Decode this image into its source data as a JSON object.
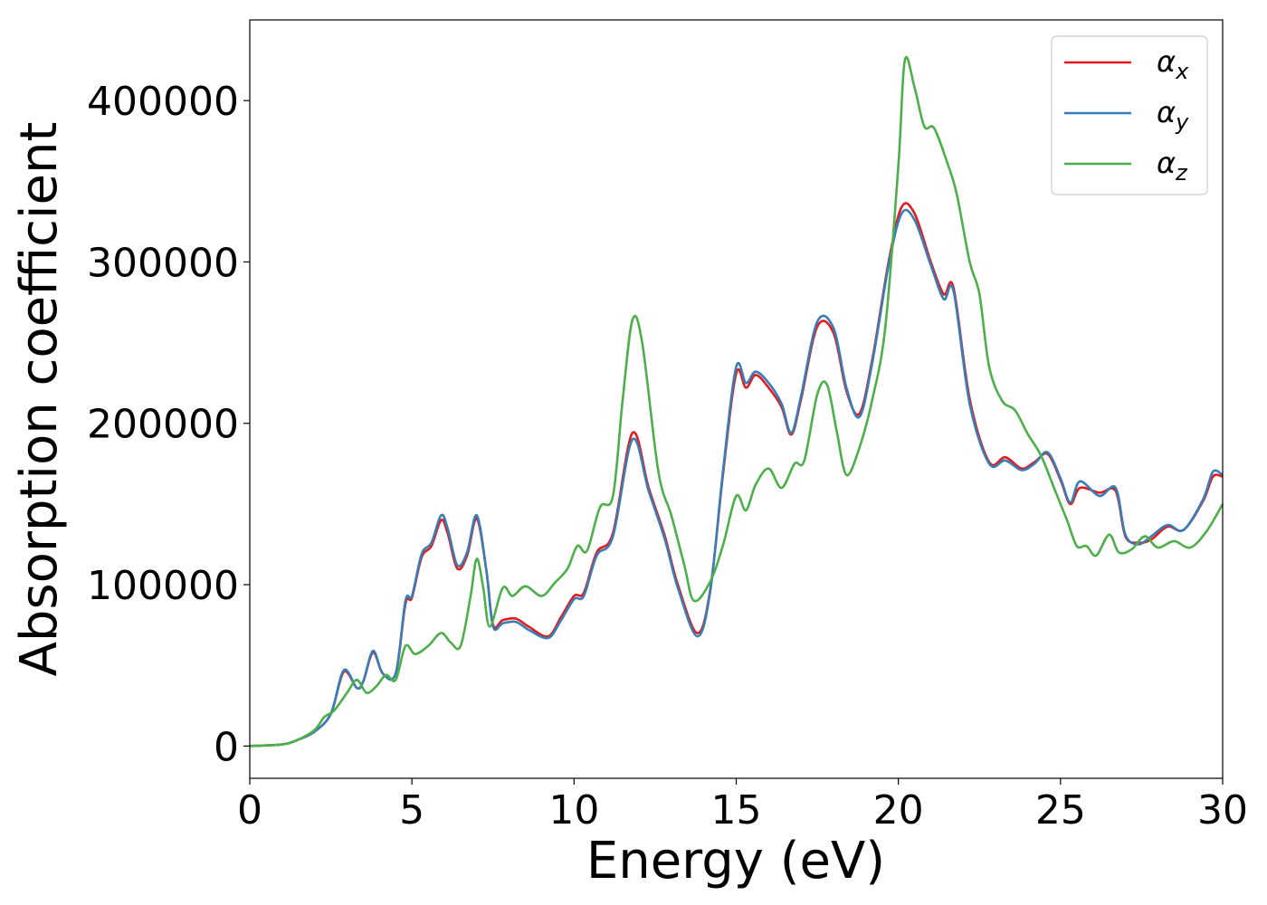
{
  "chart_data": {
    "type": "line",
    "xlabel": "Energy (eV)",
    "ylabel": "Absorption coefficient",
    "xlim": [
      0,
      30
    ],
    "ylim": [
      -20000,
      450000
    ],
    "xticks": [
      0,
      5,
      10,
      15,
      20,
      25,
      30
    ],
    "yticks": [
      0,
      100000,
      200000,
      300000,
      400000
    ],
    "grid": false,
    "legend_position": "top-right",
    "series": [
      {
        "name": "α_x",
        "symbol": "α",
        "subscript": "x",
        "color": "#e41a1c",
        "points": [
          [
            0,
            0
          ],
          [
            1,
            1000
          ],
          [
            1.5,
            4000
          ],
          [
            2,
            9000
          ],
          [
            2.5,
            20000
          ],
          [
            2.9,
            46000
          ],
          [
            3.3,
            36000
          ],
          [
            3.5,
            40000
          ],
          [
            3.8,
            58000
          ],
          [
            4.1,
            45000
          ],
          [
            4.5,
            45000
          ],
          [
            4.8,
            88000
          ],
          [
            5,
            92000
          ],
          [
            5.3,
            117000
          ],
          [
            5.6,
            124000
          ],
          [
            5.9,
            140000
          ],
          [
            6.1,
            132000
          ],
          [
            6.4,
            110000
          ],
          [
            6.7,
            118000
          ],
          [
            7,
            141000
          ],
          [
            7.3,
            108000
          ],
          [
            7.5,
            75000
          ],
          [
            7.8,
            78000
          ],
          [
            8.2,
            79000
          ],
          [
            8.6,
            74000
          ],
          [
            9.2,
            68000
          ],
          [
            9.6,
            80000
          ],
          [
            10,
            93000
          ],
          [
            10.3,
            95000
          ],
          [
            10.7,
            120000
          ],
          [
            11.2,
            132000
          ],
          [
            11.8,
            194000
          ],
          [
            12.3,
            160000
          ],
          [
            12.8,
            130000
          ],
          [
            13.2,
            100000
          ],
          [
            13.8,
            70000
          ],
          [
            14.2,
            97000
          ],
          [
            14.6,
            170000
          ],
          [
            15,
            231000
          ],
          [
            15.3,
            222000
          ],
          [
            15.6,
            230000
          ],
          [
            16,
            222000
          ],
          [
            16.4,
            210000
          ],
          [
            16.7,
            193000
          ],
          [
            17,
            215000
          ],
          [
            17.5,
            260000
          ],
          [
            18,
            256000
          ],
          [
            18.4,
            220000
          ],
          [
            18.8,
            206000
          ],
          [
            19.2,
            240000
          ],
          [
            19.7,
            300000
          ],
          [
            20.1,
            334000
          ],
          [
            20.5,
            330000
          ],
          [
            21,
            300000
          ],
          [
            21.4,
            280000
          ],
          [
            21.7,
            284000
          ],
          [
            22.2,
            215000
          ],
          [
            22.8,
            176000
          ],
          [
            23.3,
            179000
          ],
          [
            23.8,
            172000
          ],
          [
            24.2,
            176000
          ],
          [
            24.6,
            181000
          ],
          [
            25,
            165000
          ],
          [
            25.3,
            150000
          ],
          [
            25.6,
            160000
          ],
          [
            26.2,
            157000
          ],
          [
            26.7,
            158000
          ],
          [
            27,
            130000
          ],
          [
            27.4,
            126000
          ],
          [
            27.8,
            128000
          ],
          [
            28.3,
            136000
          ],
          [
            28.8,
            134000
          ],
          [
            29.4,
            152000
          ],
          [
            29.7,
            167000
          ],
          [
            30,
            167000
          ]
        ]
      },
      {
        "name": "α_y",
        "symbol": "α",
        "subscript": "y",
        "color": "#377eb8",
        "points": [
          [
            0,
            0
          ],
          [
            1,
            1000
          ],
          [
            1.5,
            4000
          ],
          [
            2,
            9000
          ],
          [
            2.5,
            20000
          ],
          [
            2.9,
            47000
          ],
          [
            3.3,
            36000
          ],
          [
            3.5,
            40000
          ],
          [
            3.8,
            59000
          ],
          [
            4.1,
            45000
          ],
          [
            4.5,
            45000
          ],
          [
            4.8,
            90000
          ],
          [
            5,
            93000
          ],
          [
            5.3,
            119000
          ],
          [
            5.6,
            126000
          ],
          [
            5.9,
            143000
          ],
          [
            6.1,
            135000
          ],
          [
            6.4,
            112000
          ],
          [
            6.7,
            120000
          ],
          [
            7,
            143000
          ],
          [
            7.3,
            108000
          ],
          [
            7.5,
            74000
          ],
          [
            7.8,
            76000
          ],
          [
            8.2,
            77000
          ],
          [
            8.6,
            72000
          ],
          [
            9.2,
            67000
          ],
          [
            9.6,
            78000
          ],
          [
            10,
            91000
          ],
          [
            10.3,
            93000
          ],
          [
            10.7,
            118000
          ],
          [
            11.2,
            130000
          ],
          [
            11.8,
            190000
          ],
          [
            12.3,
            158000
          ],
          [
            12.8,
            128000
          ],
          [
            13.2,
            98000
          ],
          [
            13.8,
            68000
          ],
          [
            14.2,
            96000
          ],
          [
            14.6,
            172000
          ],
          [
            15,
            235000
          ],
          [
            15.3,
            225000
          ],
          [
            15.6,
            232000
          ],
          [
            16,
            225000
          ],
          [
            16.4,
            212000
          ],
          [
            16.7,
            194000
          ],
          [
            17,
            217000
          ],
          [
            17.5,
            263000
          ],
          [
            18,
            259000
          ],
          [
            18.4,
            222000
          ],
          [
            18.8,
            204000
          ],
          [
            19.2,
            238000
          ],
          [
            19.7,
            298000
          ],
          [
            20.1,
            330000
          ],
          [
            20.5,
            326000
          ],
          [
            21,
            298000
          ],
          [
            21.4,
            277000
          ],
          [
            21.7,
            282000
          ],
          [
            22.2,
            212000
          ],
          [
            22.8,
            175000
          ],
          [
            23.3,
            177000
          ],
          [
            23.8,
            171000
          ],
          [
            24.2,
            175000
          ],
          [
            24.6,
            182000
          ],
          [
            25,
            166000
          ],
          [
            25.3,
            151000
          ],
          [
            25.6,
            164000
          ],
          [
            26.2,
            155000
          ],
          [
            26.7,
            160000
          ],
          [
            27,
            131000
          ],
          [
            27.4,
            125000
          ],
          [
            27.8,
            130000
          ],
          [
            28.3,
            137000
          ],
          [
            28.8,
            134000
          ],
          [
            29.4,
            153000
          ],
          [
            29.7,
            170000
          ],
          [
            30,
            168000
          ]
        ]
      },
      {
        "name": "α_z",
        "symbol": "α",
        "subscript": "z",
        "color": "#4daf4a",
        "points": [
          [
            0,
            0
          ],
          [
            1,
            1000
          ],
          [
            1.5,
            4000
          ],
          [
            2,
            10000
          ],
          [
            2.3,
            18000
          ],
          [
            2.6,
            22000
          ],
          [
            3,
            33000
          ],
          [
            3.3,
            41000
          ],
          [
            3.6,
            33000
          ],
          [
            3.9,
            37000
          ],
          [
            4.2,
            44000
          ],
          [
            4.5,
            41000
          ],
          [
            4.8,
            62000
          ],
          [
            5.1,
            57000
          ],
          [
            5.5,
            62000
          ],
          [
            5.9,
            70000
          ],
          [
            6.2,
            64000
          ],
          [
            6.5,
            62000
          ],
          [
            6.8,
            92000
          ],
          [
            7,
            116000
          ],
          [
            7.2,
            98000
          ],
          [
            7.4,
            74000
          ],
          [
            7.8,
            98000
          ],
          [
            8.1,
            93000
          ],
          [
            8.5,
            99000
          ],
          [
            9,
            93000
          ],
          [
            9.4,
            101000
          ],
          [
            9.8,
            110000
          ],
          [
            10.1,
            124000
          ],
          [
            10.4,
            121000
          ],
          [
            10.8,
            148000
          ],
          [
            11.2,
            155000
          ],
          [
            11.5,
            215000
          ],
          [
            11.8,
            264000
          ],
          [
            12.1,
            250000
          ],
          [
            12.6,
            170000
          ],
          [
            13,
            143000
          ],
          [
            13.4,
            112000
          ],
          [
            13.7,
            90000
          ],
          [
            14.2,
            102000
          ],
          [
            14.6,
            125000
          ],
          [
            15,
            155000
          ],
          [
            15.3,
            146000
          ],
          [
            15.6,
            162000
          ],
          [
            16,
            172000
          ],
          [
            16.4,
            160000
          ],
          [
            16.8,
            175000
          ],
          [
            17.1,
            177000
          ],
          [
            17.5,
            218000
          ],
          [
            17.8,
            224000
          ],
          [
            18.1,
            195000
          ],
          [
            18.4,
            168000
          ],
          [
            18.8,
            185000
          ],
          [
            19.2,
            215000
          ],
          [
            19.6,
            260000
          ],
          [
            20,
            360000
          ],
          [
            20.2,
            425000
          ],
          [
            20.5,
            408000
          ],
          [
            20.8,
            384000
          ],
          [
            21.1,
            383000
          ],
          [
            21.5,
            362000
          ],
          [
            21.8,
            342000
          ],
          [
            22.2,
            300000
          ],
          [
            22.5,
            280000
          ],
          [
            22.8,
            235000
          ],
          [
            23.2,
            214000
          ],
          [
            23.6,
            208000
          ],
          [
            24,
            193000
          ],
          [
            24.4,
            180000
          ],
          [
            24.8,
            160000
          ],
          [
            25.2,
            140000
          ],
          [
            25.5,
            124000
          ],
          [
            25.8,
            124000
          ],
          [
            26.1,
            118000
          ],
          [
            26.5,
            131000
          ],
          [
            26.8,
            120000
          ],
          [
            27.2,
            122000
          ],
          [
            27.6,
            130000
          ],
          [
            28,
            123000
          ],
          [
            28.5,
            127000
          ],
          [
            29,
            123000
          ],
          [
            29.5,
            133000
          ],
          [
            30,
            150000
          ]
        ]
      }
    ]
  }
}
